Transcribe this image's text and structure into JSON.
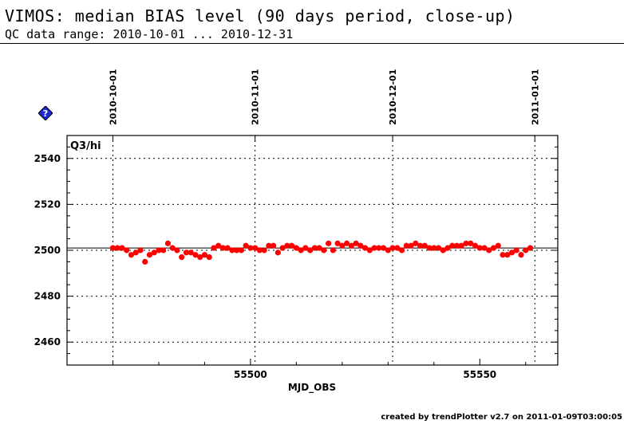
{
  "header": {
    "title": "VIMOS: median BIAS level (90 days period, close-up)",
    "subtitle": "QC data range: 2010-10-01 ... 2010-12-31"
  },
  "footer": {
    "text": "created by trendPlotter v2.7 on 2011-01-09T03:00:05"
  },
  "icons": {
    "help": "help-diamond-icon"
  },
  "colors": {
    "points": "#ff0000",
    "help_icon": "#1a2bd6"
  },
  "chart_data": {
    "type": "scatter",
    "panel_label": "Q3/hi",
    "xlabel": "MJD_OBS",
    "ylabel": "",
    "xlim": [
      55460,
      55567
    ],
    "ylim": [
      2450,
      2550
    ],
    "x_ticks": [
      55500,
      55550
    ],
    "y_ticks": [
      2460,
      2480,
      2500,
      2520,
      2540
    ],
    "reference_line": 2501,
    "top_axis_dates": [
      {
        "label": "2010-10-01",
        "mjd": 55470
      },
      {
        "label": "2010-11-01",
        "mjd": 55501
      },
      {
        "label": "2010-12-01",
        "mjd": 55531
      },
      {
        "label": "2011-01-01",
        "mjd": 55562
      }
    ],
    "grid": true,
    "series": [
      {
        "x": [
          55470,
          55471,
          55472,
          55473,
          55474,
          55475,
          55476,
          55477,
          55478,
          55479,
          55480,
          55481,
          55482,
          55483,
          55484,
          55485,
          55486,
          55487,
          55488,
          55489,
          55490,
          55491,
          55492,
          55493,
          55494,
          55495,
          55496,
          55497,
          55498,
          55499,
          55500,
          55501,
          55502,
          55503,
          55504,
          55505,
          55506,
          55507,
          55508,
          55509,
          55510,
          55511,
          55512,
          55513,
          55514,
          55515,
          55516,
          55517,
          55518,
          55519,
          55520,
          55521,
          55522,
          55523,
          55524,
          55525,
          55526,
          55527,
          55528,
          55529,
          55530,
          55531,
          55532,
          55533,
          55534,
          55535,
          55536,
          55537,
          55538,
          55539,
          55540,
          55541,
          55542,
          55543,
          55544,
          55545,
          55546,
          55547,
          55548,
          55549,
          55550,
          55551,
          55552,
          55553,
          55554,
          55555,
          55556,
          55557,
          55558,
          55559,
          55560,
          55561
        ],
        "y": [
          2501,
          2501,
          2501,
          2500,
          2498,
          2499,
          2500,
          2495,
          2498,
          2499,
          2500,
          2500,
          2503,
          2501,
          2500,
          2497,
          2499,
          2499,
          2498,
          2497,
          2498,
          2497,
          2501,
          2502,
          2501,
          2501,
          2500,
          2500,
          2500,
          2502,
          2501,
          2501,
          2500,
          2500,
          2502,
          2502,
          2499,
          2501,
          2502,
          2502,
          2501,
          2500,
          2501,
          2500,
          2501,
          2501,
          2500,
          2503,
          2500,
          2503,
          2502,
          2503,
          2502,
          2503,
          2502,
          2501,
          2500,
          2501,
          2501,
          2501,
          2500,
          2501,
          2501,
          2500,
          2502,
          2502,
          2503,
          2502,
          2502,
          2501,
          2501,
          2501,
          2500,
          2501,
          2502,
          2502,
          2502,
          2503,
          2503,
          2502,
          2501,
          2501,
          2500,
          2501,
          2502,
          2498,
          2498,
          2499,
          2500,
          2498,
          2500,
          2501
        ]
      }
    ]
  }
}
